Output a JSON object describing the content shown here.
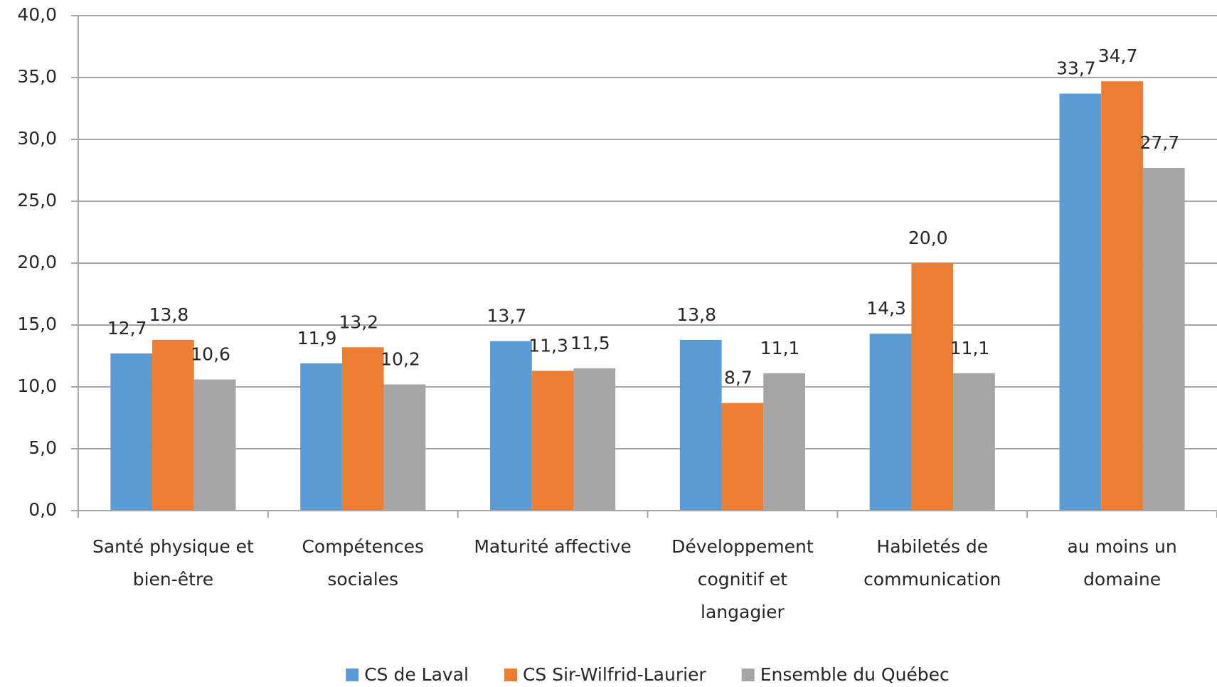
{
  "chart_data": {
    "type": "bar",
    "categories": [
      "Santé physique et bien-être",
      "Compétences sociales",
      "Maturité affective",
      "Développement cognitif et langagier",
      "Habiletés de communication",
      "au moins un domaine"
    ],
    "series": [
      {
        "name": "CS de Laval",
        "color": "#5b9bd5",
        "values": [
          12.7,
          11.9,
          13.7,
          13.8,
          14.3,
          33.7
        ],
        "value_labels": [
          "12,7",
          "11,9",
          "13,7",
          "13,8",
          "14,3",
          "33,7"
        ]
      },
      {
        "name": "CS Sir-Wilfrid-Laurier",
        "color": "#ed7d31",
        "values": [
          13.8,
          13.2,
          11.3,
          8.7,
          20.0,
          34.7
        ],
        "value_labels": [
          "13,8",
          "13,2",
          "11,3",
          "8,7",
          "20,0",
          "34,7"
        ]
      },
      {
        "name": "Ensemble du Québec",
        "color": "#a5a5a5",
        "values": [
          10.6,
          10.2,
          11.5,
          11.1,
          11.1,
          27.7
        ],
        "value_labels": [
          "10,6",
          "10,2",
          "11,5",
          "11,1",
          "11,1",
          "27,7"
        ]
      }
    ],
    "ylim": [
      0,
      40
    ],
    "yticks": [
      {
        "value": 0,
        "label": "0,0"
      },
      {
        "value": 5,
        "label": "5,0"
      },
      {
        "value": 10,
        "label": "10,0"
      },
      {
        "value": 15,
        "label": "15,0"
      },
      {
        "value": 20,
        "label": "20,0"
      },
      {
        "value": 25,
        "label": "25,0"
      },
      {
        "value": 30,
        "label": "30,0"
      },
      {
        "value": 35,
        "label": "35,0"
      },
      {
        "value": 40,
        "label": "40,0"
      }
    ],
    "grid": true,
    "legend": "bottom"
  }
}
